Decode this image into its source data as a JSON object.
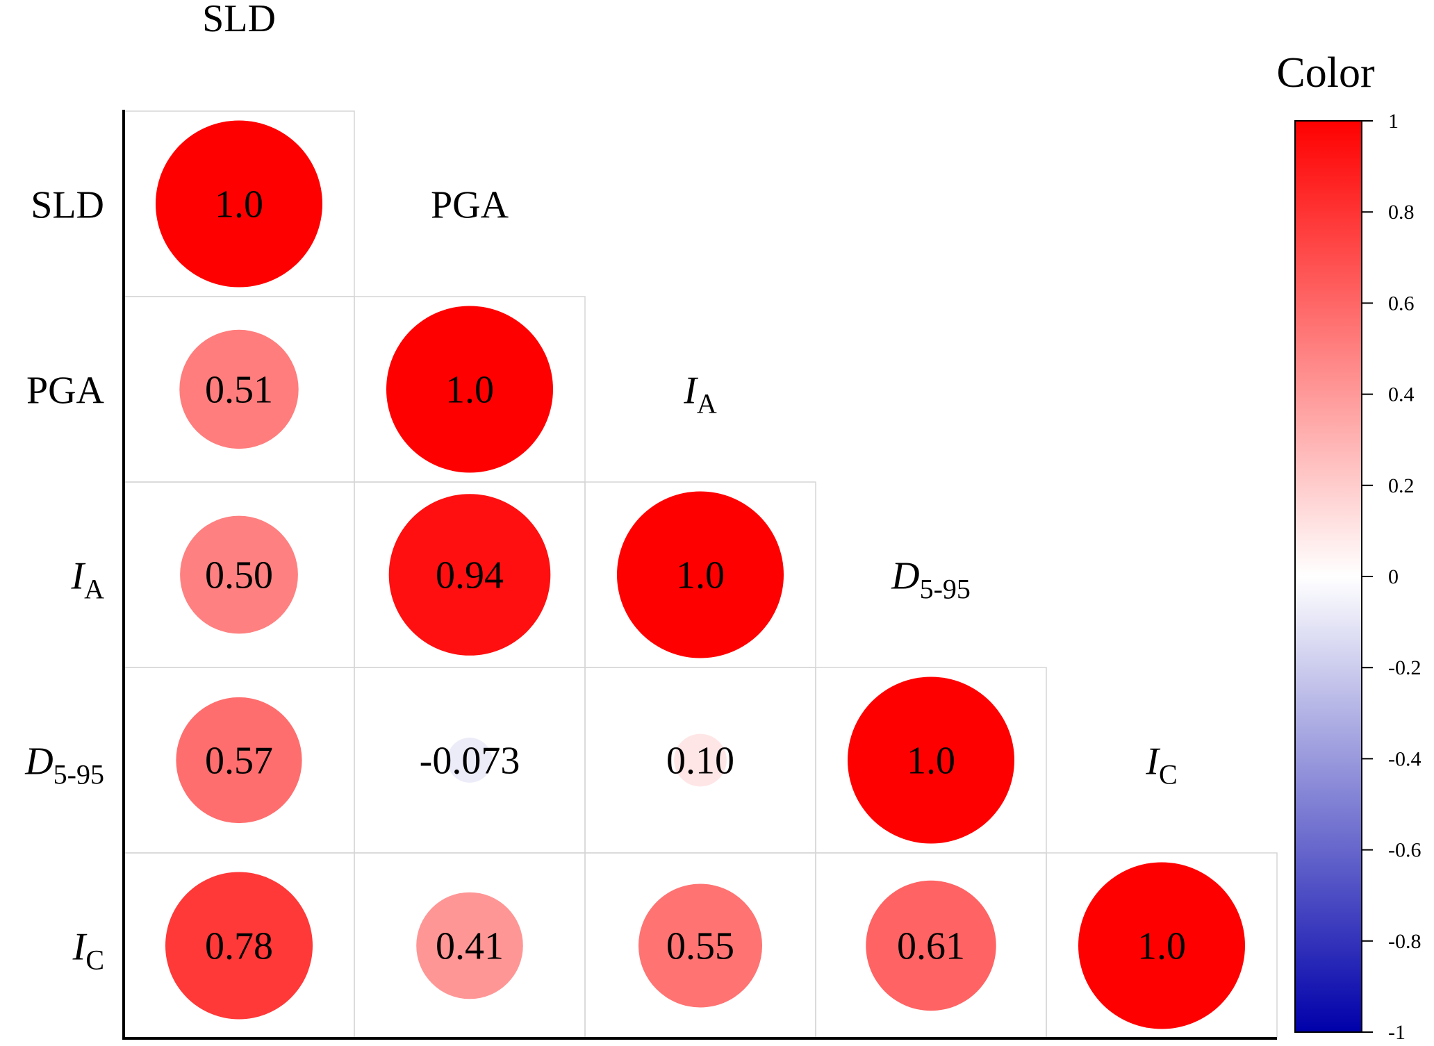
{
  "chart_data": {
    "type": "heatmap",
    "variables": [
      {
        "main": "SLD",
        "sub": "",
        "italic": false
      },
      {
        "main": "PGA",
        "sub": "",
        "italic": false
      },
      {
        "main": "I",
        "sub": "A",
        "italic": true
      },
      {
        "main": "D",
        "sub": "5-95",
        "italic": true
      },
      {
        "main": "I",
        "sub": "C",
        "italic": true
      }
    ],
    "matrix": [
      [
        {
          "v": 1.0,
          "label": "1.0"
        }
      ],
      [
        {
          "v": 0.51,
          "label": "0.51"
        },
        {
          "v": 1.0,
          "label": "1.0"
        }
      ],
      [
        {
          "v": 0.5,
          "label": "0.50"
        },
        {
          "v": 0.94,
          "label": "0.94"
        },
        {
          "v": 1.0,
          "label": "1.0"
        }
      ],
      [
        {
          "v": 0.57,
          "label": "0.57"
        },
        {
          "v": -0.073,
          "label": "-0.073"
        },
        {
          "v": 0.1,
          "label": "0.10"
        },
        {
          "v": 1.0,
          "label": "1.0"
        }
      ],
      [
        {
          "v": 0.78,
          "label": "0.78"
        },
        {
          "v": 0.41,
          "label": "0.41"
        },
        {
          "v": 0.55,
          "label": "0.55"
        },
        {
          "v": 0.61,
          "label": "0.61"
        },
        {
          "v": 1.0,
          "label": "1.0"
        }
      ]
    ],
    "colorbar": {
      "title": "Color",
      "range": [
        -1,
        1
      ],
      "ticks": [
        "1",
        "0.8",
        "0.6",
        "0.4",
        "0.2",
        "0",
        "-0.2",
        "-0.4",
        "-0.6",
        "-0.8",
        "-1"
      ],
      "colors": {
        "max": "#ff0000",
        "mid": "#ffffff",
        "min": "#0000aa"
      }
    },
    "grid": true
  }
}
